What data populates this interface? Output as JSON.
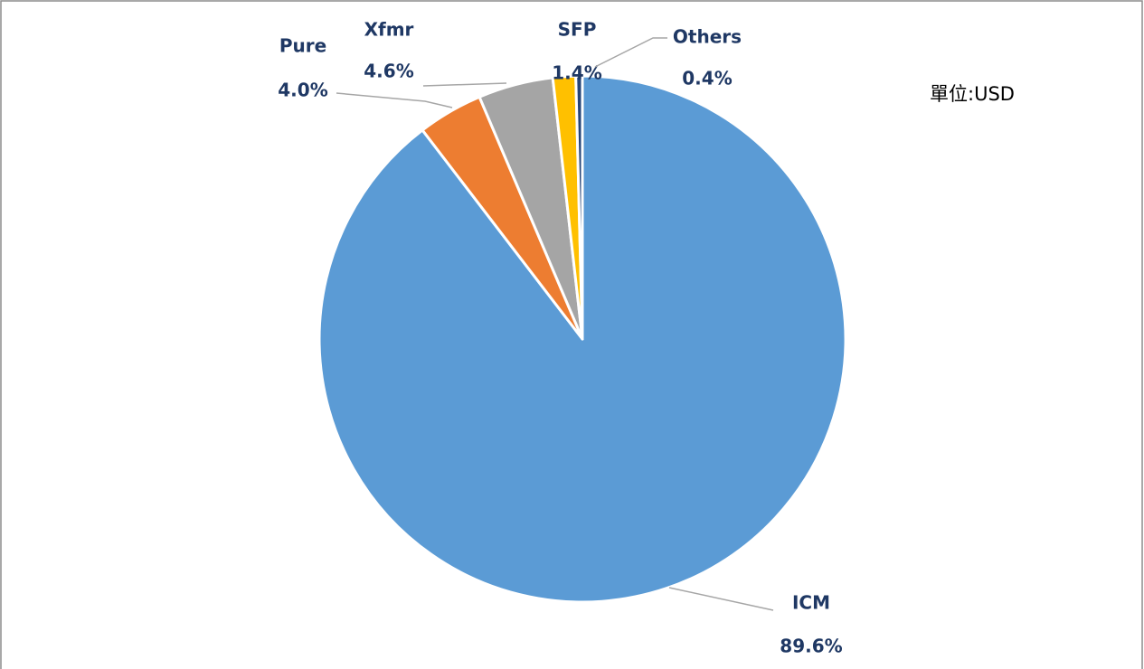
{
  "chart_data": {
    "type": "pie",
    "categories": [
      "ICM",
      "Pure",
      "Xfmr",
      "SFP",
      "Others"
    ],
    "values": [
      89.6,
      4.0,
      4.6,
      1.4,
      0.4
    ],
    "value_labels": [
      "89.6%",
      "4.0%",
      "4.6%",
      "1.4%",
      "0.4%"
    ],
    "colors": [
      "#5b9bd5",
      "#ed7d31",
      "#a5a5a5",
      "#ffc000",
      "#264478"
    ],
    "annotation": "單位:USD"
  }
}
